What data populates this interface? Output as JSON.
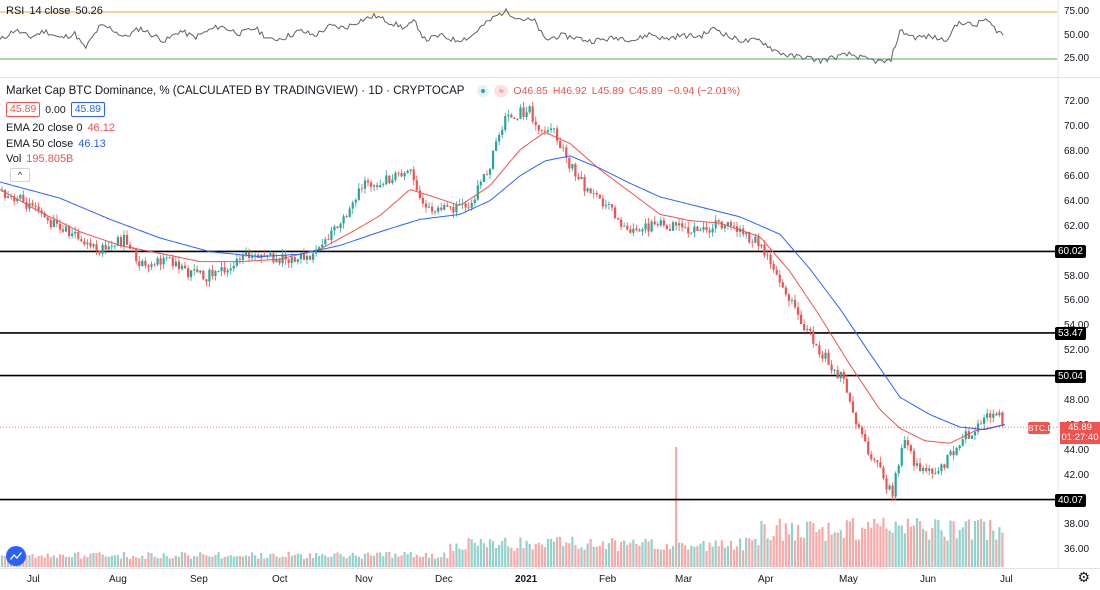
{
  "rsi_legend": {
    "name": "RSI",
    "params": "14 close",
    "value": "50.26"
  },
  "main_legend": {
    "title": "Market Cap BTC Dominance, % (CALCULATED BY TRADINGVIEW) · 1D · CRYPTOCAP",
    "o": "O46.85",
    "h": "H46.92",
    "l": "L45.89",
    "c": "C45.89",
    "change": "−0.94 (−2.01%)"
  },
  "bid_ask": {
    "bid": "45.89",
    "spread": "0.00",
    "ask": "45.89"
  },
  "ema20": {
    "label": "EMA 20 close 0",
    "value": "46.12"
  },
  "ema50": {
    "label": "EMA 50 close",
    "value": "46.13"
  },
  "vol": {
    "label": "Vol",
    "value": "195.805B"
  },
  "collapse_glyph": "^",
  "price_axis_ticks": [
    "72.00",
    "70.00",
    "68.00",
    "66.00",
    "64.00",
    "62.00",
    "58.00",
    "56.00",
    "54.00",
    "52.00",
    "48.00",
    "46.00",
    "44.00",
    "42.00",
    "38.00",
    "36.00"
  ],
  "rsi_axis_ticks": [
    "75.00",
    "50.00",
    "25.00"
  ],
  "level_tags": [
    "60.02",
    "53.47",
    "50.04",
    "40.07"
  ],
  "last_price": {
    "symbol": "BTC.D",
    "value": "45.89",
    "countdown": "01:27:40"
  },
  "time_axis": [
    "Jul",
    "Aug",
    "Sep",
    "Oct",
    "Nov",
    "Dec",
    "2021",
    "Feb",
    "Mar",
    "Apr",
    "May",
    "Jun",
    "Jul"
  ],
  "colors": {
    "up": "#26a69a",
    "down": "#ef5350",
    "ema20": "#ef5350",
    "ema50": "#2962ff",
    "rsi_upper": "#f0a035",
    "rsi_lower": "#4caf50"
  },
  "icons": [
    "tradingview-logo-icon",
    "settings-gear-icon"
  ],
  "chart_data": {
    "type": "candlestick",
    "title": "Market Cap BTC Dominance, % (CALCULATED BY TRADINGVIEW)",
    "interval": "1D",
    "x": [
      "Jul",
      "Aug",
      "Sep",
      "Oct",
      "Nov",
      "Dec",
      "2021",
      "Feb",
      "Mar",
      "Apr",
      "May",
      "Jun",
      "Jul"
    ],
    "ylim": [
      35.0,
      73.5
    ],
    "horizontal_levels": [
      60.02,
      53.47,
      50.04,
      40.07
    ],
    "series": [
      {
        "name": "BTC.D",
        "anchors": [
          [
            0,
            64.9
          ],
          [
            20,
            64.2
          ],
          [
            45,
            62.6
          ],
          [
            70,
            61.5
          ],
          [
            100,
            60.2
          ],
          [
            125,
            61.0
          ],
          [
            140,
            59.0
          ],
          [
            165,
            59.4
          ],
          [
            190,
            58.3
          ],
          [
            205,
            58.0
          ],
          [
            230,
            58.8
          ],
          [
            255,
            60.0
          ],
          [
            280,
            59.4
          ],
          [
            310,
            59.6
          ],
          [
            330,
            61.3
          ],
          [
            350,
            63.6
          ],
          [
            365,
            65.4
          ],
          [
            385,
            65.8
          ],
          [
            410,
            66.7
          ],
          [
            425,
            63.5
          ],
          [
            450,
            63.3
          ],
          [
            470,
            63.7
          ],
          [
            490,
            67.0
          ],
          [
            505,
            70.8
          ],
          [
            530,
            71.4
          ],
          [
            540,
            69.5
          ],
          [
            555,
            69.6
          ],
          [
            570,
            67.0
          ],
          [
            590,
            64.5
          ],
          [
            610,
            63.5
          ],
          [
            625,
            61.9
          ],
          [
            645,
            62.0
          ],
          [
            665,
            62.2
          ],
          [
            690,
            61.8
          ],
          [
            705,
            61.7
          ],
          [
            720,
            62.3
          ],
          [
            740,
            61.6
          ],
          [
            760,
            60.6
          ],
          [
            780,
            57.4
          ],
          [
            800,
            54.7
          ],
          [
            815,
            52.5
          ],
          [
            830,
            51.0
          ],
          [
            845,
            49.6
          ],
          [
            860,
            45.4
          ],
          [
            875,
            43.0
          ],
          [
            892,
            40.5
          ],
          [
            905,
            45.0
          ],
          [
            915,
            43.0
          ],
          [
            935,
            42.0
          ],
          [
            950,
            43.7
          ],
          [
            965,
            45.1
          ],
          [
            985,
            46.6
          ],
          [
            995,
            47.5
          ],
          [
            1005,
            45.9
          ]
        ]
      },
      {
        "name": "EMA 20",
        "anchors": [
          [
            0,
            65.0
          ],
          [
            40,
            63.2
          ],
          [
            80,
            61.6
          ],
          [
            120,
            60.5
          ],
          [
            170,
            59.7
          ],
          [
            200,
            59.2
          ],
          [
            240,
            59.2
          ],
          [
            280,
            59.4
          ],
          [
            320,
            60.2
          ],
          [
            350,
            61.5
          ],
          [
            380,
            62.9
          ],
          [
            410,
            65.0
          ],
          [
            430,
            64.5
          ],
          [
            460,
            63.7
          ],
          [
            490,
            65.3
          ],
          [
            520,
            68.2
          ],
          [
            545,
            69.6
          ],
          [
            570,
            68.7
          ],
          [
            600,
            66.6
          ],
          [
            630,
            64.8
          ],
          [
            660,
            63.0
          ],
          [
            690,
            62.5
          ],
          [
            720,
            62.3
          ],
          [
            760,
            61.2
          ],
          [
            790,
            58.4
          ],
          [
            820,
            54.8
          ],
          [
            850,
            50.9
          ],
          [
            880,
            47.3
          ],
          [
            900,
            45.8
          ],
          [
            925,
            44.8
          ],
          [
            950,
            44.6
          ],
          [
            975,
            45.6
          ],
          [
            1005,
            46.1
          ]
        ]
      },
      {
        "name": "EMA 50",
        "anchors": [
          [
            0,
            65.6
          ],
          [
            60,
            64.3
          ],
          [
            110,
            62.6
          ],
          [
            160,
            61.1
          ],
          [
            210,
            60.0
          ],
          [
            260,
            59.6
          ],
          [
            300,
            59.8
          ],
          [
            340,
            60.5
          ],
          [
            380,
            61.6
          ],
          [
            420,
            62.6
          ],
          [
            460,
            63.0
          ],
          [
            490,
            64.1
          ],
          [
            520,
            66.1
          ],
          [
            545,
            67.3
          ],
          [
            570,
            67.7
          ],
          [
            600,
            66.7
          ],
          [
            630,
            65.5
          ],
          [
            660,
            64.4
          ],
          [
            700,
            63.6
          ],
          [
            740,
            62.8
          ],
          [
            780,
            61.4
          ],
          [
            810,
            58.6
          ],
          [
            840,
            55.4
          ],
          [
            870,
            51.8
          ],
          [
            900,
            48.3
          ],
          [
            930,
            46.9
          ],
          [
            960,
            45.9
          ],
          [
            985,
            45.7
          ],
          [
            1005,
            46.1
          ]
        ]
      },
      {
        "name": "RSI",
        "ylim": [
          17,
          80
        ],
        "anchors": [
          [
            0,
            45
          ],
          [
            15,
            56
          ],
          [
            30,
            48
          ],
          [
            45,
            55
          ],
          [
            60,
            47
          ],
          [
            75,
            52
          ],
          [
            85,
            36
          ],
          [
            100,
            60
          ],
          [
            110,
            58
          ],
          [
            125,
            48
          ],
          [
            140,
            58
          ],
          [
            150,
            52
          ],
          [
            165,
            44
          ],
          [
            180,
            55
          ],
          [
            195,
            48
          ],
          [
            210,
            56
          ],
          [
            220,
            60
          ],
          [
            240,
            52
          ],
          [
            255,
            58
          ],
          [
            270,
            45
          ],
          [
            285,
            48
          ],
          [
            300,
            55
          ],
          [
            315,
            50
          ],
          [
            330,
            60
          ],
          [
            345,
            58
          ],
          [
            360,
            66
          ],
          [
            375,
            71
          ],
          [
            390,
            64
          ],
          [
            405,
            58
          ],
          [
            415,
            65
          ],
          [
            425,
            45
          ],
          [
            440,
            50
          ],
          [
            455,
            45
          ],
          [
            470,
            48
          ],
          [
            480,
            58
          ],
          [
            495,
            70
          ],
          [
            505,
            76
          ],
          [
            520,
            68
          ],
          [
            535,
            65
          ],
          [
            545,
            45
          ],
          [
            560,
            50
          ],
          [
            575,
            48
          ],
          [
            590,
            44
          ],
          [
            605,
            46
          ],
          [
            620,
            48
          ],
          [
            635,
            45
          ],
          [
            650,
            52
          ],
          [
            665,
            46
          ],
          [
            680,
            50
          ],
          [
            700,
            49
          ],
          [
            715,
            58
          ],
          [
            730,
            48
          ],
          [
            745,
            44
          ],
          [
            760,
            45
          ],
          [
            775,
            34
          ],
          [
            790,
            28
          ],
          [
            805,
            27
          ],
          [
            820,
            23
          ],
          [
            835,
            27
          ],
          [
            850,
            30
          ],
          [
            865,
            25
          ],
          [
            880,
            22
          ],
          [
            890,
            22
          ],
          [
            900,
            55
          ],
          [
            915,
            48
          ],
          [
            930,
            49
          ],
          [
            945,
            45
          ],
          [
            960,
            65
          ],
          [
            975,
            60
          ],
          [
            985,
            68
          ],
          [
            995,
            57
          ],
          [
            1005,
            50
          ]
        ]
      }
    ]
  }
}
